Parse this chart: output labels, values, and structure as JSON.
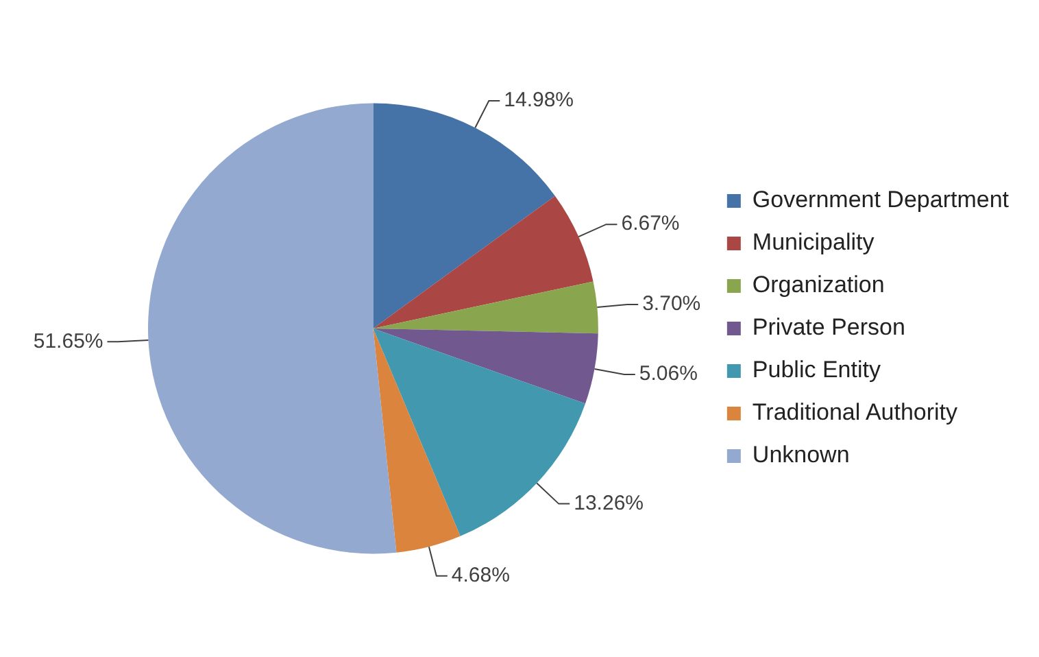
{
  "chart_data": {
    "type": "pie",
    "categories": [
      "Government Department",
      "Municipality",
      "Organization",
      "Private Person",
      "Public Entity",
      "Traditional Authority",
      "Unknown"
    ],
    "values": [
      14.98,
      6.67,
      3.7,
      5.06,
      13.26,
      4.68,
      51.65
    ],
    "colors": [
      "#4572a7",
      "#aa4643",
      "#89a54e",
      "#71588f",
      "#4198af",
      "#db843d",
      "#93a9cf"
    ],
    "value_labels": [
      "14.98%",
      "6.67%",
      "3.70%",
      "5.06%",
      "13.26%",
      "4.68%",
      "51.65%"
    ],
    "legend": "right"
  }
}
